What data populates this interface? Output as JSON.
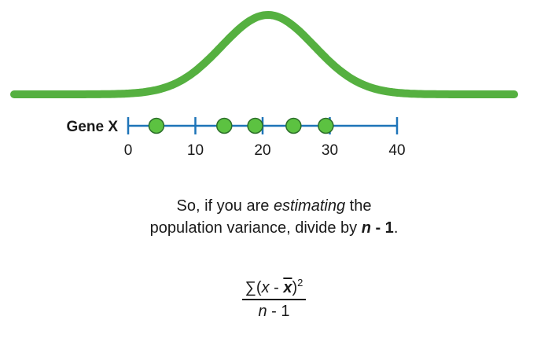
{
  "curve_color": "#55b040",
  "axis_color": "#1e74b8",
  "dot_fill": "#5cc241",
  "dot_stroke": "#2c6e2a",
  "axis": {
    "label": "Gene X",
    "min": 0,
    "max": 40,
    "ticks": [
      0,
      10,
      20,
      30,
      40
    ],
    "tick_labels": [
      "0",
      "10",
      "20",
      "30",
      "40"
    ]
  },
  "distribution": {
    "type": "normal",
    "mean": 20.8,
    "sd": 6.9
  },
  "points": [
    4.2,
    14.3,
    18.9,
    24.6,
    29.4
  ],
  "caption": {
    "line1_a": "So, if you are ",
    "line1_em": "estimating",
    "line1_b": " the",
    "line2_a": "population variance, divide by ",
    "line2_n": "n",
    "line2_b": " - 1",
    "line2_c": "."
  },
  "formula": {
    "sigma": "∑",
    "open": "(",
    "x": "x",
    "minus": " - ",
    "xbar": "x",
    "close": ")",
    "exp": "2",
    "den_n": "n",
    "den_rest": " - 1"
  }
}
